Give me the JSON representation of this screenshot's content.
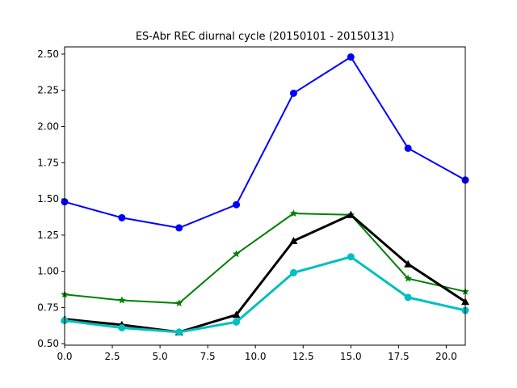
{
  "chart_data": {
    "type": "line",
    "title": "ES-Abr REC diurnal cycle (20150101 - 20150131)",
    "xlabel": "",
    "ylabel": "",
    "xlim": [
      0,
      21
    ],
    "ylim": [
      0.49,
      2.55
    ],
    "grid": false,
    "x": [
      0,
      3,
      6,
      9,
      12,
      15,
      18,
      21
    ],
    "x_ticks": [
      0.0,
      2.5,
      5.0,
      7.5,
      10.0,
      12.5,
      15.0,
      17.5,
      20.0
    ],
    "x_tick_labels": [
      "0.0",
      "2.5",
      "5.0",
      "7.5",
      "10.0",
      "12.5",
      "15.0",
      "17.5",
      "20.0"
    ],
    "y_ticks": [
      0.5,
      0.75,
      1.0,
      1.25,
      1.5,
      1.75,
      2.0,
      2.25,
      2.5
    ],
    "y_tick_labels": [
      "0.50",
      "0.75",
      "1.00",
      "1.25",
      "1.50",
      "1.75",
      "2.00",
      "2.25",
      "2.50"
    ],
    "series": [
      {
        "color": "#0000ff",
        "marker": "circle",
        "width": 2,
        "values": [
          1.48,
          1.37,
          1.3,
          1.46,
          2.23,
          2.48,
          1.85,
          1.63
        ]
      },
      {
        "color": "#008000",
        "marker": "star",
        "width": 2,
        "values": [
          0.84,
          0.8,
          0.78,
          1.12,
          1.4,
          1.39,
          0.95,
          0.86
        ]
      },
      {
        "color": "#000000",
        "marker": "triangle",
        "width": 3,
        "values": [
          0.67,
          0.63,
          0.58,
          0.7,
          1.21,
          1.39,
          1.05,
          0.79
        ]
      },
      {
        "color": "#00bfbf",
        "marker": "circle",
        "width": 3,
        "values": [
          0.66,
          0.61,
          0.58,
          0.65,
          0.99,
          1.1,
          0.82,
          0.73
        ]
      }
    ]
  }
}
